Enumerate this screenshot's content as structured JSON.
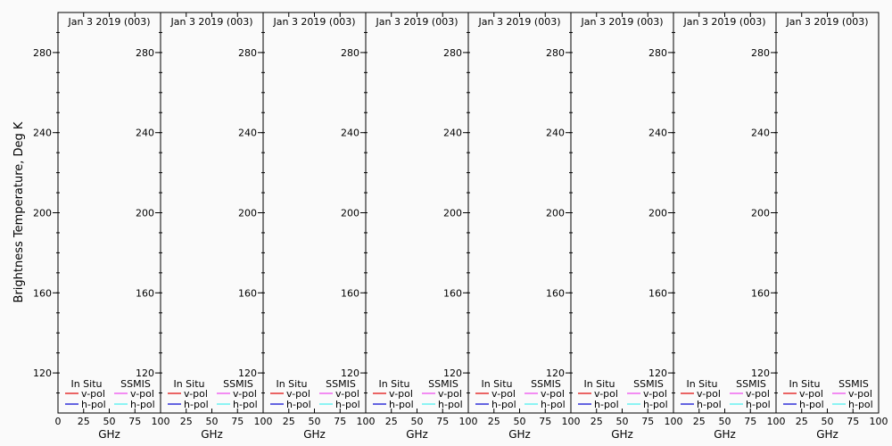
{
  "chart_data": [
    {
      "type": "line",
      "title": "Jan 3 2019 (003)",
      "xlabel": "GHz",
      "ylabel": "Brightness Temperature, Deg K",
      "xlim": [
        0,
        100
      ],
      "ylim": [
        100,
        300
      ],
      "xticks": [
        "0",
        "25",
        "50",
        "75",
        "100"
      ],
      "yticks": [
        "120",
        "160",
        "200",
        "240",
        "280"
      ],
      "legend": {
        "groups": [
          {
            "title": "In Situ",
            "entries": [
              {
                "label": "v-pol",
                "color": "#e00000"
              },
              {
                "label": "h-pol",
                "color": "#0000d0"
              }
            ]
          },
          {
            "title": "SSMIS",
            "entries": [
              {
                "label": "v-pol",
                "color": "#ee44ee"
              },
              {
                "label": "h-pol",
                "color": "#44eeee"
              }
            ]
          }
        ],
        "placement": "bottom"
      },
      "series": []
    },
    {
      "type": "line",
      "title": "Jan 3 2019 (003)",
      "xlabel": "GHz",
      "xlim": [
        0,
        100
      ],
      "ylim": [
        100,
        300
      ],
      "xticks": [
        "25",
        "50",
        "75",
        "100"
      ],
      "yticks": [
        "120",
        "160",
        "200",
        "240",
        "280"
      ],
      "series": []
    },
    {
      "type": "line",
      "title": "Jan 3 2019 (003)",
      "xlabel": "GHz",
      "xlim": [
        0,
        100
      ],
      "ylim": [
        100,
        300
      ],
      "xticks": [
        "25",
        "50",
        "75",
        "100"
      ],
      "yticks": [
        "120",
        "160",
        "200",
        "240",
        "280"
      ],
      "series": []
    },
    {
      "type": "line",
      "title": "Jan 3 2019 (003)",
      "xlabel": "GHz",
      "xlim": [
        0,
        100
      ],
      "ylim": [
        100,
        300
      ],
      "xticks": [
        "25",
        "50",
        "75",
        "100"
      ],
      "yticks": [
        "120",
        "160",
        "200",
        "240",
        "280"
      ],
      "series": []
    },
    {
      "type": "line",
      "title": "Jan 3 2019 (003)",
      "xlabel": "GHz",
      "xlim": [
        0,
        100
      ],
      "ylim": [
        100,
        300
      ],
      "xticks": [
        "25",
        "50",
        "75",
        "100"
      ],
      "yticks": [
        "120",
        "160",
        "200",
        "240",
        "280"
      ],
      "series": []
    },
    {
      "type": "line",
      "title": "Jan 3 2019 (003)",
      "xlabel": "GHz",
      "xlim": [
        0,
        100
      ],
      "ylim": [
        100,
        300
      ],
      "xticks": [
        "25",
        "50",
        "75",
        "100"
      ],
      "yticks": [
        "120",
        "160",
        "200",
        "240",
        "280"
      ],
      "series": []
    },
    {
      "type": "line",
      "title": "Jan 3 2019 (003)",
      "xlabel": "GHz",
      "xlim": [
        0,
        100
      ],
      "ylim": [
        100,
        300
      ],
      "xticks": [
        "25",
        "50",
        "75",
        "100"
      ],
      "yticks": [
        "120",
        "160",
        "200",
        "240",
        "280"
      ],
      "series": []
    },
    {
      "type": "line",
      "title": "Jan 3 2019 (003)",
      "xlabel": "GHz",
      "xlim": [
        0,
        100
      ],
      "ylim": [
        100,
        300
      ],
      "xticks": [
        "25",
        "50",
        "75",
        "100"
      ],
      "yticks": [
        "120",
        "160",
        "200",
        "240",
        "280"
      ],
      "series": []
    }
  ]
}
